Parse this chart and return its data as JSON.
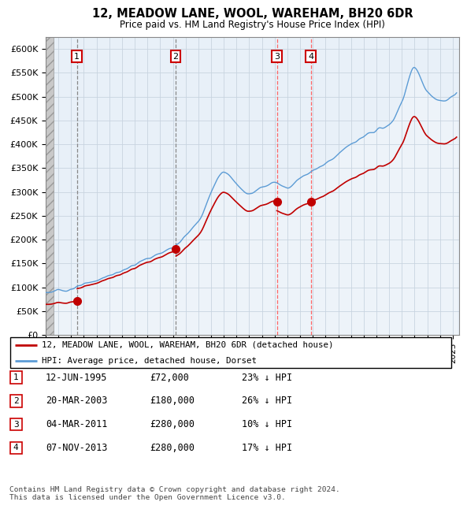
{
  "title": "12, MEADOW LANE, WOOL, WAREHAM, BH20 6DR",
  "subtitle": "Price paid vs. HM Land Registry's House Price Index (HPI)",
  "ylim": [
    0,
    625000
  ],
  "yticks": [
    0,
    50000,
    100000,
    150000,
    200000,
    250000,
    300000,
    350000,
    400000,
    450000,
    500000,
    550000,
    600000
  ],
  "xlim_start": 1993.0,
  "xlim_end": 2025.5,
  "sale_dates": [
    1995.45,
    2003.22,
    2011.17,
    2013.85
  ],
  "sale_prices": [
    72000,
    180000,
    280000,
    280000
  ],
  "sale_labels": [
    "1",
    "2",
    "3",
    "4"
  ],
  "hpi_color": "#5b9bd5",
  "price_color": "#c00000",
  "legend_line1": "12, MEADOW LANE, WOOL, WAREHAM, BH20 6DR (detached house)",
  "legend_line2": "HPI: Average price, detached house, Dorset",
  "table_rows": [
    [
      "1",
      "12-JUN-1995",
      "£72,000",
      "23% ↓ HPI"
    ],
    [
      "2",
      "20-MAR-2003",
      "£180,000",
      "26% ↓ HPI"
    ],
    [
      "3",
      "04-MAR-2011",
      "£280,000",
      "10% ↓ HPI"
    ],
    [
      "4",
      "07-NOV-2013",
      "£280,000",
      "17% ↓ HPI"
    ]
  ],
  "footer": "Contains HM Land Registry data © Crown copyright and database right 2024.\nThis data is licensed under the Open Government Licence v3.0."
}
